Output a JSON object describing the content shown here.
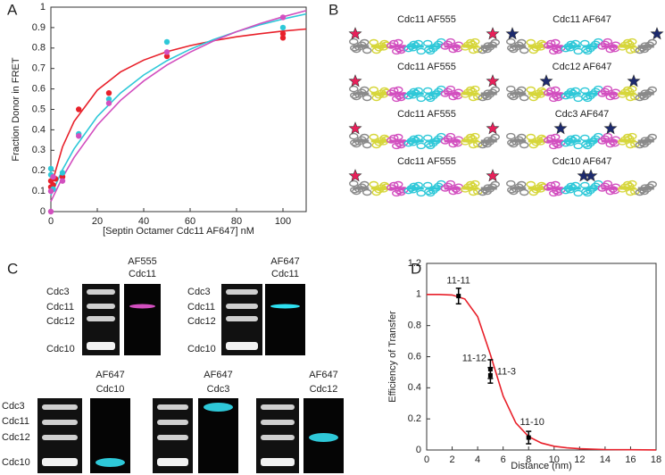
{
  "panels": [
    "A",
    "B",
    "C",
    "D"
  ],
  "chart_data": [
    {
      "type": "scatter",
      "xlabel": "[Septin Octamer Cdc11 AF647] nM",
      "ylabel": "Fraction Donor in FRET",
      "xlim": [
        0,
        110
      ],
      "xticks": [
        0,
        20,
        40,
        60,
        80,
        100
      ],
      "ylim": [
        0,
        1
      ],
      "yticks": [
        0,
        0.1,
        0.2,
        0.3,
        0.4,
        0.5,
        0.6,
        0.7,
        0.8,
        0.9,
        1
      ],
      "series": [
        {
          "color": "#e8202a",
          "x": [
            0,
            0,
            1,
            2,
            5,
            12,
            25,
            50,
            100,
            100
          ],
          "values": [
            0.12,
            0.15,
            0.13,
            0.16,
            0.17,
            0.5,
            0.58,
            0.76,
            0.85,
            0.87
          ]
        },
        {
          "color": "#2ec8d8",
          "x": [
            0,
            0,
            1,
            5,
            12,
            25,
            50,
            100
          ],
          "values": [
            0.21,
            0.18,
            0.11,
            0.19,
            0.38,
            0.55,
            0.83,
            0.9
          ]
        },
        {
          "color": "#d24fbf",
          "x": [
            0,
            0,
            1,
            5,
            12,
            25,
            50,
            100
          ],
          "values": [
            0,
            0.1,
            0.17,
            0.15,
            0.37,
            0.53,
            0.78,
            0.95
          ]
        }
      ],
      "fits": [
        {
          "color": "#e8202a",
          "x": [
            0,
            5,
            10,
            20,
            30,
            40,
            50,
            60,
            70,
            80,
            90,
            100,
            110
          ],
          "values": [
            0.12,
            0.316,
            0.441,
            0.594,
            0.683,
            0.741,
            0.782,
            0.812,
            0.836,
            0.855,
            0.87,
            0.883,
            0.893
          ]
        },
        {
          "color": "#2ec8d8",
          "x": [
            0,
            5,
            10,
            20,
            30,
            40,
            50,
            60,
            70,
            80,
            90,
            100,
            110
          ],
          "values": [
            0.08,
            0.205,
            0.307,
            0.465,
            0.58,
            0.668,
            0.738,
            0.794,
            0.841,
            0.88,
            0.913,
            0.942,
            0.967
          ]
        },
        {
          "color": "#d24fbf",
          "x": [
            0,
            5,
            10,
            20,
            30,
            40,
            50,
            60,
            70,
            80,
            90,
            100,
            110
          ],
          "values": [
            0.05,
            0.167,
            0.265,
            0.423,
            0.544,
            0.639,
            0.717,
            0.78,
            0.834,
            0.88,
            0.919,
            0.953,
            0.983
          ]
        }
      ]
    },
    {
      "type": "line",
      "xlabel": "Distance (nm)",
      "ylabel": "Efficiency of Transfer",
      "xlim": [
        0,
        18
      ],
      "xticks": [
        0,
        2,
        4,
        6,
        8,
        10,
        12,
        14,
        16,
        18
      ],
      "ylim": [
        0,
        1.2
      ],
      "yticks": [
        0,
        0.2,
        0.4,
        0.6,
        0.8,
        1,
        1.2
      ],
      "color": "#e8202a",
      "x": [
        0,
        1,
        2,
        3,
        4,
        5,
        6,
        7,
        8,
        9,
        10,
        11,
        12,
        14,
        16,
        18
      ],
      "values": [
        1,
        1,
        0.997,
        0.971,
        0.858,
        0.614,
        0.347,
        0.174,
        0.086,
        0.045,
        0.024,
        0.014,
        0.008,
        0.003,
        0.0015,
        0.0007
      ],
      "points": {
        "x": [
          2.5,
          5,
          5,
          8
        ],
        "values": [
          0.99,
          0.52,
          0.48,
          0.08
        ],
        "errors": [
          0.05,
          0.06,
          0.05,
          0.04
        ],
        "labels": [
          "11-11",
          "11-12",
          "11-3",
          "11-10"
        ]
      }
    }
  ],
  "filaments": {
    "left_labels": [
      "Cdc11 AF555",
      "Cdc11 AF555",
      "Cdc11 AF555",
      "Cdc11 AF555"
    ],
    "right_labels": [
      "Cdc11 AF647",
      "Cdc12 AF647",
      "Cdc3 AF647",
      "Cdc10 AF647"
    ]
  },
  "gels": [
    {
      "title": [
        "AF555",
        "Cdc11"
      ],
      "lane_labels": [
        "Cdc3",
        "Cdc11",
        "Cdc12",
        "Cdc10"
      ]
    },
    {
      "title": [
        "AF647",
        "Cdc11"
      ],
      "lane_labels": [
        "Cdc3",
        "Cdc11",
        "Cdc12",
        "Cdc10"
      ]
    },
    {
      "title": [
        "AF647",
        "Cdc10"
      ],
      "lane_labels": [
        "Cdc3",
        "Cdc11",
        "Cdc12",
        "Cdc10"
      ]
    },
    {
      "title": [
        "AF647",
        "Cdc3"
      ]
    },
    {
      "title": [
        "AF647",
        "Cdc12"
      ]
    }
  ]
}
